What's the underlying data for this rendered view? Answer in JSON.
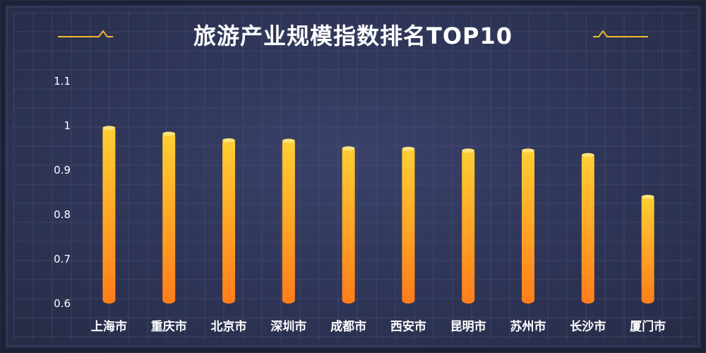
{
  "chart_data": {
    "type": "bar",
    "title": "旅游产业规模指数排名TOP10",
    "xlabel": "",
    "ylabel": "",
    "categories": [
      "上海市",
      "重庆市",
      "北京市",
      "深圳市",
      "成都市",
      "西安市",
      "昆明市",
      "苏州市",
      "长沙市",
      "厦门市"
    ],
    "values": [
      0.998,
      0.985,
      0.97,
      0.969,
      0.952,
      0.951,
      0.947,
      0.947,
      0.937,
      0.843
    ],
    "ylim": [
      0.6,
      1.1
    ],
    "yticks": [
      "1.1",
      "1",
      "0.9",
      "0.8",
      "0.7",
      "0.6"
    ],
    "grid": true,
    "legend": "none",
    "colors": {
      "background": "#2b3150",
      "grid": "#4a5275",
      "bar_top": "#ffcf33",
      "bar_bottom": "#ff7d1a",
      "title_ornament": "#f5b82e",
      "frame": "#1c2136"
    }
  }
}
